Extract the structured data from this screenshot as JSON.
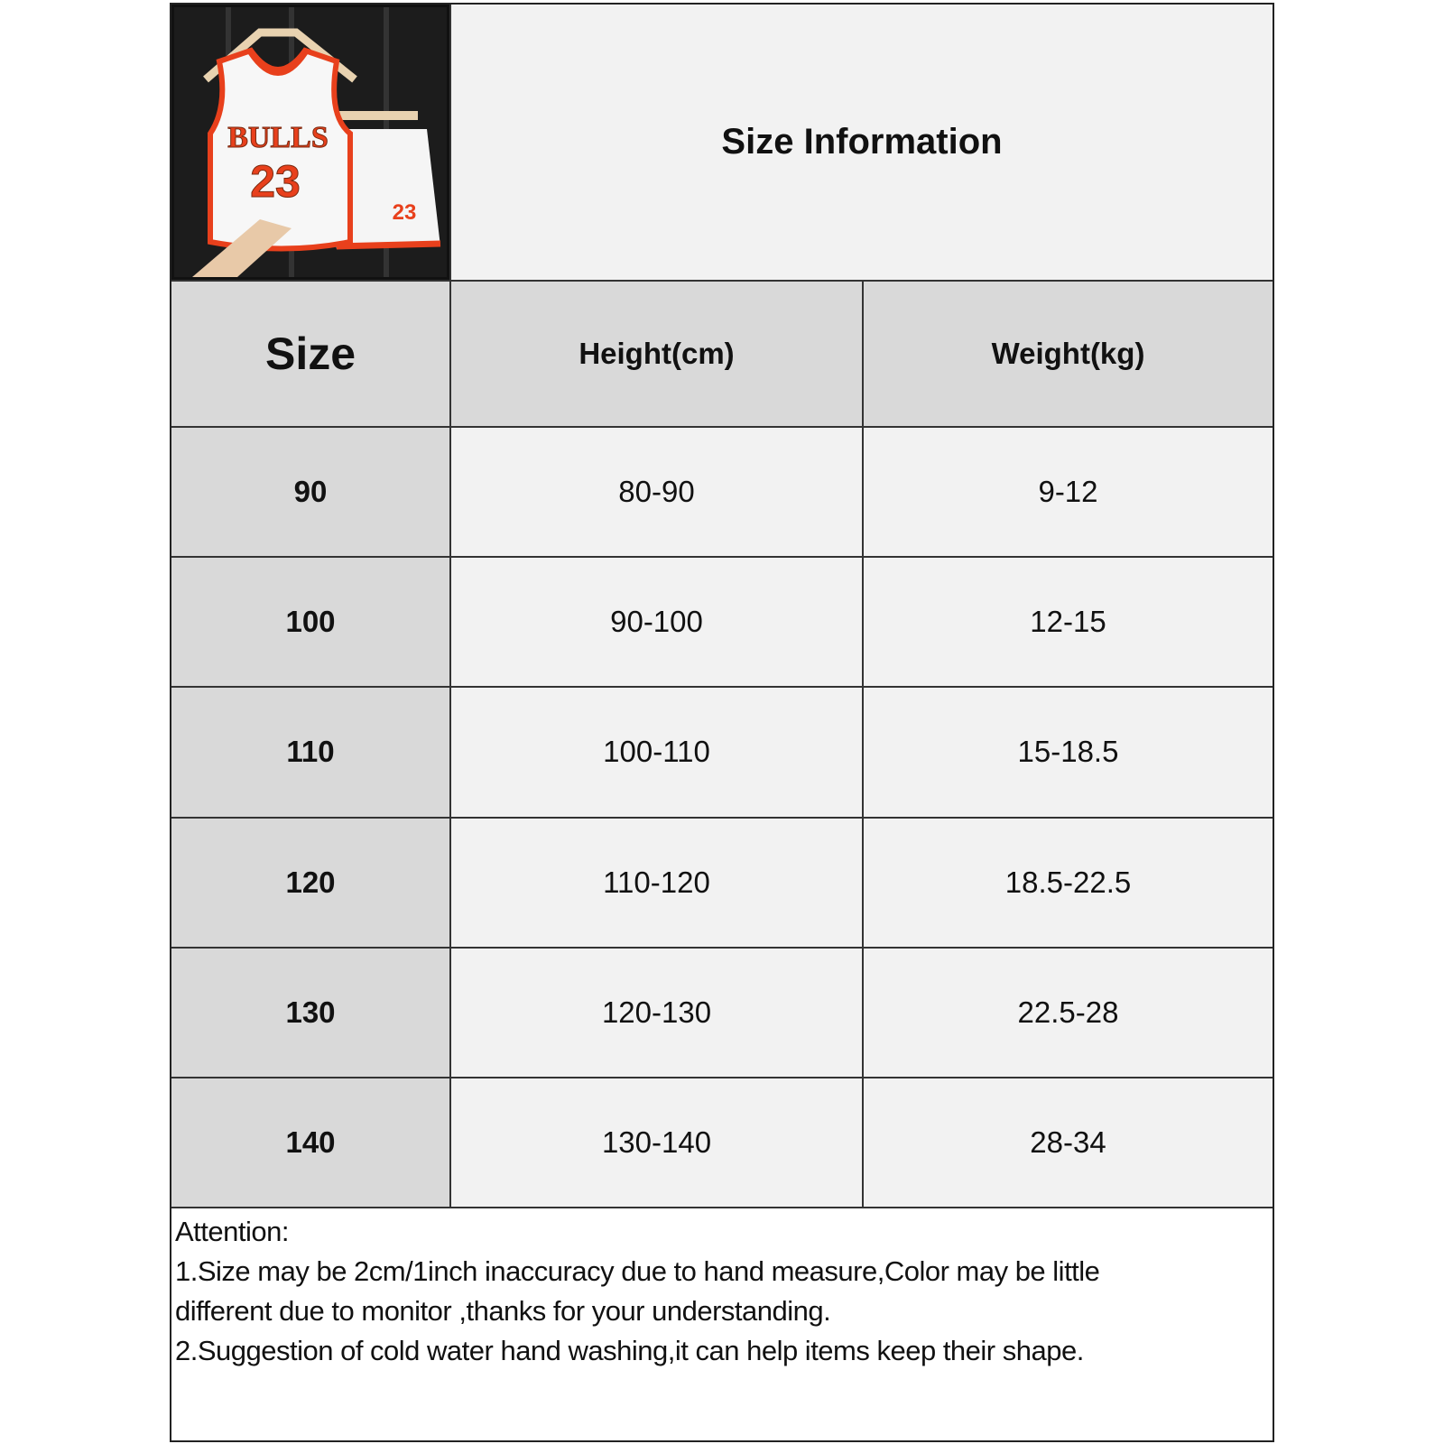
{
  "header": {
    "title": "Size Information",
    "image_alt": "BULLS 23 jersey and shorts set",
    "image_text": {
      "team": "BULLS",
      "number": "23"
    }
  },
  "table": {
    "columns": [
      "Size",
      "Height(cm)",
      "Weight(kg)"
    ],
    "rows": [
      [
        "90",
        "80-90",
        "9-12"
      ],
      [
        "100",
        "90-100",
        "12-15"
      ],
      [
        "110",
        "100-110",
        "15-18.5"
      ],
      [
        "120",
        "110-120",
        "18.5-22.5"
      ],
      [
        "130",
        "120-130",
        "22.5-28"
      ],
      [
        "140",
        "130-140",
        "28-34"
      ]
    ]
  },
  "notes": {
    "heading": "Attention:",
    "lines": [
      "1.Size may be 2cm/1inch inaccuracy due to hand measure,Color may be little",
      "different due to monitor ,thanks for your understanding.",
      "2.Suggestion of cold water hand washing,it can help items keep their shape."
    ]
  },
  "colors": {
    "header_gray": "#d9d9d9",
    "cell_light": "#f2f2f2",
    "jersey_red": "#e8401c"
  }
}
